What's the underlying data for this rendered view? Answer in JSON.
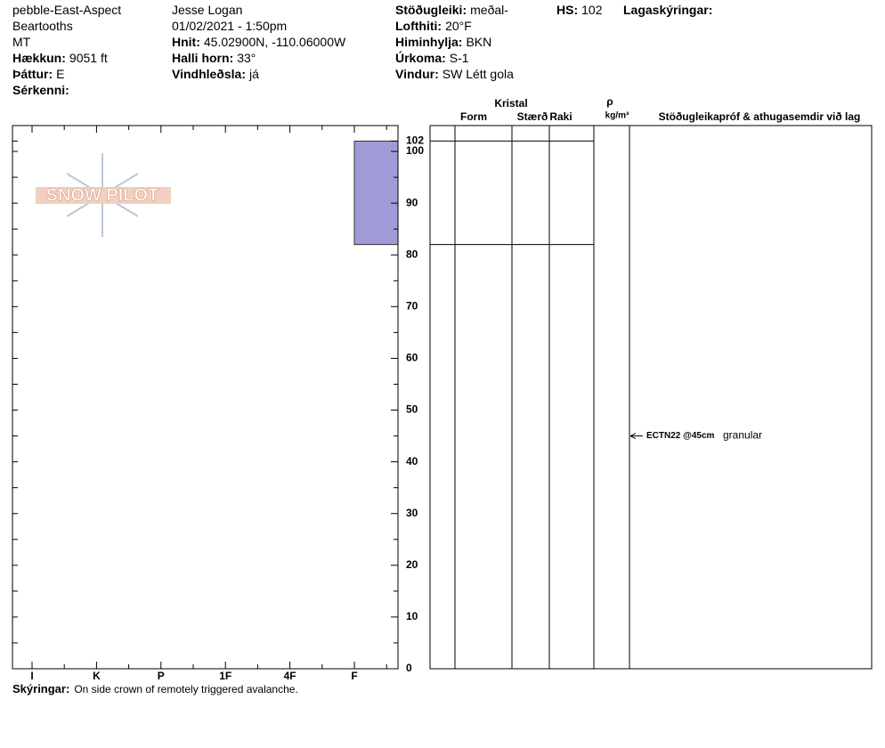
{
  "header": {
    "columns": [
      [
        {
          "value": "pebble-East-Aspect"
        },
        {
          "value": "Beartooths"
        },
        {
          "value": "MT"
        },
        {
          "label": "Hækkun:",
          "value": "9051 ft"
        },
        {
          "label": "Þáttur:",
          "value": "E"
        },
        {
          "label": "Sérkenni:"
        }
      ],
      [
        {
          "value": "Jesse Logan"
        },
        {
          "value": "01/02/2021 - 1:50pm"
        },
        {
          "label": "Hnit:",
          "value": "45.02900N, -110.06000W"
        },
        {
          "label": "Halli horn:",
          "value": "33°"
        },
        {
          "label": "Vindhleðsla:",
          "value": "já"
        }
      ],
      [
        {
          "label": "Stöðugleiki:",
          "value": "meðal-"
        },
        {
          "label": "Lofthiti:",
          "value": "20°F"
        },
        {
          "label": "Himinhylja:",
          "value": "BKN"
        },
        {
          "label": "Úrkoma:",
          "value": "S-1"
        },
        {
          "label": "Vindur:",
          "value": "SW Létt gola"
        }
      ],
      [
        {
          "label": "HS:",
          "value": "102"
        }
      ],
      [
        {
          "label": "Lagaskýringar:"
        }
      ]
    ]
  },
  "logo": "SNOW PILOT",
  "chart_data": {
    "type": "snow-profile",
    "categories": [
      "I",
      "K",
      "P",
      "1F",
      "4F",
      "F"
    ],
    "ylim": [
      0,
      105
    ],
    "yticks": [
      0,
      10,
      20,
      30,
      40,
      50,
      60,
      70,
      80,
      90,
      100,
      102
    ],
    "layers": [
      {
        "top": 102,
        "bottom": 82,
        "hardness": "F",
        "color": "#9e9bd8"
      }
    ],
    "table_headers": {
      "crystal": "Kristal",
      "form": "Form",
      "size": "Stærð",
      "moisture": "Raki",
      "rho": "ρ",
      "density_unit": "kg/m³",
      "comments": "Stöðugleikapróf & athugasemdir við lag"
    },
    "tests": [
      {
        "label": "ECTN22 @45cm",
        "comment": "granular",
        "depth": 45
      }
    ]
  },
  "footer": {
    "label": "Skýringar:",
    "value": "On side crown of remotely triggered avalanche."
  }
}
